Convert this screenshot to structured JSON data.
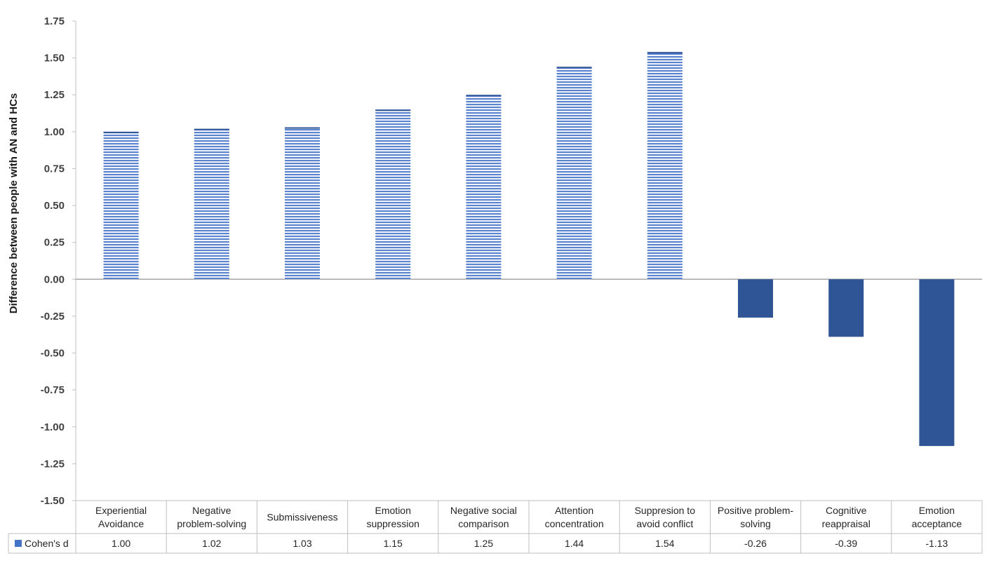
{
  "chart_data": {
    "type": "bar",
    "ylabel": "Difference between people with AN and HCs",
    "ylim": [
      -1.5,
      1.75
    ],
    "y_ticks": [
      "1.75",
      "1.50",
      "1.25",
      "1.00",
      "0.75",
      "0.50",
      "0.25",
      "0.00",
      "-0.25",
      "-0.50",
      "-0.75",
      "-1.00",
      "-1.25",
      "-1.50"
    ],
    "categories": [
      [
        "Experiential",
        "Avoidance"
      ],
      [
        "Negative",
        "problem-solving"
      ],
      [
        "Submissiveness"
      ],
      [
        "Emotion",
        "suppression"
      ],
      [
        "Negative social",
        "comparison"
      ],
      [
        "Attention",
        "concentration"
      ],
      [
        "Suppresion to",
        "avoid conflict"
      ],
      [
        "Positive problem-",
        "solving"
      ],
      [
        "Cognitive",
        "reappraisal"
      ],
      [
        "Emotion",
        "acceptance"
      ]
    ],
    "series": [
      {
        "name": "Cohen's d",
        "values": [
          1.0,
          1.02,
          1.03,
          1.15,
          1.25,
          1.44,
          1.54,
          -0.26,
          -0.39,
          -1.13
        ],
        "value_labels": [
          "1.00",
          "1.02",
          "1.03",
          "1.15",
          "1.25",
          "1.44",
          "1.54",
          "-0.26",
          "-0.39",
          "-1.13"
        ]
      }
    ],
    "legend": "data-table",
    "grid": false,
    "colors": {
      "positive_bar": "#4a76c8",
      "positive_stripe": "#ffffff",
      "negative_bar": "#2f5597",
      "legend_swatch": "#4472c4"
    }
  }
}
